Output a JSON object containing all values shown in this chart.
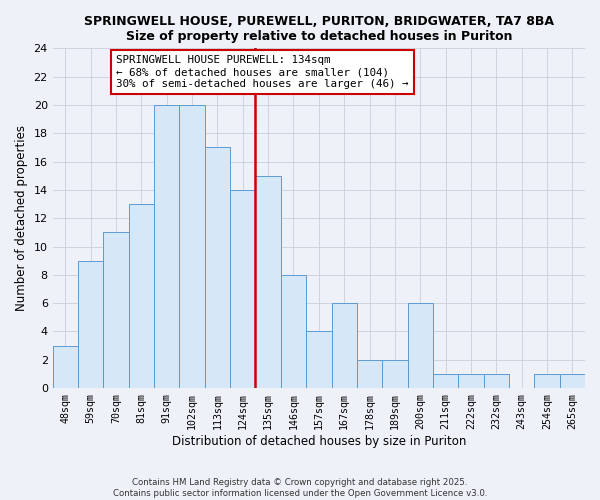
{
  "title": "SPRINGWELL HOUSE, PUREWELL, PURITON, BRIDGWATER, TA7 8BA",
  "subtitle": "Size of property relative to detached houses in Puriton",
  "xlabel": "Distribution of detached houses by size in Puriton",
  "ylabel": "Number of detached properties",
  "bins": [
    "48sqm",
    "59sqm",
    "70sqm",
    "81sqm",
    "91sqm",
    "102sqm",
    "113sqm",
    "124sqm",
    "135sqm",
    "146sqm",
    "157sqm",
    "167sqm",
    "178sqm",
    "189sqm",
    "200sqm",
    "211sqm",
    "222sqm",
    "232sqm",
    "243sqm",
    "254sqm",
    "265sqm"
  ],
  "values": [
    3,
    9,
    11,
    13,
    20,
    20,
    17,
    14,
    15,
    8,
    4,
    6,
    2,
    2,
    6,
    1,
    1,
    1,
    0,
    1,
    1
  ],
  "subject_bin_index": 8,
  "annotation_text": "SPRINGWELL HOUSE PUREWELL: 134sqm\n← 68% of detached houses are smaller (104)\n30% of semi-detached houses are larger (46) →",
  "bar_color": "#d6e8f7",
  "bar_edge_color": "#5b9bd5",
  "subject_line_color": "#cc0000",
  "annotation_box_color": "#ffffff",
  "annotation_box_edge": "#cc0000",
  "ylim": [
    0,
    24
  ],
  "yticks": [
    0,
    2,
    4,
    6,
    8,
    10,
    12,
    14,
    16,
    18,
    20,
    22,
    24
  ],
  "footer1": "Contains HM Land Registry data © Crown copyright and database right 2025.",
  "footer2": "Contains public sector information licensed under the Open Government Licence v3.0.",
  "bg_color": "#eef2f8",
  "grid_color": "#c8d0dc"
}
